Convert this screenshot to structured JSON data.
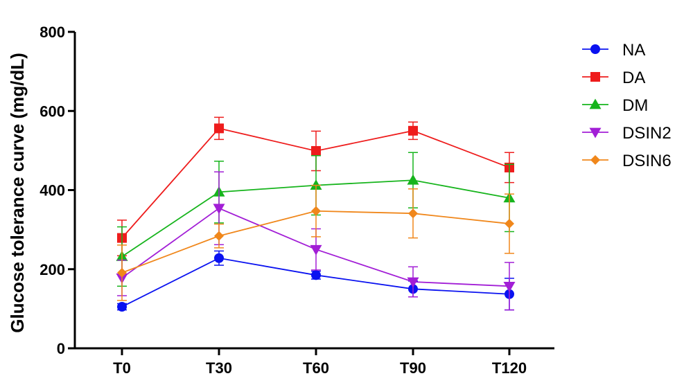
{
  "chart_data": {
    "type": "line",
    "title": "",
    "xlabel": "",
    "ylabel": "Glucose tolerance curve (mg/dL)",
    "categories": [
      "T0",
      "T30",
      "T60",
      "T90",
      "T120"
    ],
    "ylim": [
      0,
      800
    ],
    "yticks": [
      "0",
      "200",
      "400",
      "600",
      "800"
    ],
    "grid": false,
    "legend_position": "right",
    "series": [
      {
        "name": "NA",
        "color": "#0a12f0",
        "marker": "circle",
        "values": [
          105,
          228,
          185,
          150,
          137
        ],
        "errors": [
          8,
          18,
          10,
          20,
          40
        ]
      },
      {
        "name": "DA",
        "color": "#ee1c1c",
        "marker": "square",
        "values": [
          279,
          556,
          499,
          550,
          457
        ],
        "errors": [
          45,
          28,
          50,
          22,
          38
        ]
      },
      {
        "name": "DM",
        "color": "#16b41c",
        "marker": "triangle-up",
        "values": [
          232,
          395,
          412,
          425,
          380
        ],
        "errors": [
          75,
          78,
          75,
          70,
          85
        ]
      },
      {
        "name": "DSIN2",
        "color": "#a21ed6",
        "marker": "triangle-down",
        "values": [
          178,
          354,
          250,
          168,
          157
        ],
        "errors": [
          45,
          92,
          52,
          38,
          60
        ]
      },
      {
        "name": "DSIN6",
        "color": "#f0871b",
        "marker": "diamond",
        "values": [
          191,
          284,
          347,
          341,
          315
        ],
        "errors": [
          70,
          30,
          65,
          62,
          75
        ]
      }
    ]
  }
}
